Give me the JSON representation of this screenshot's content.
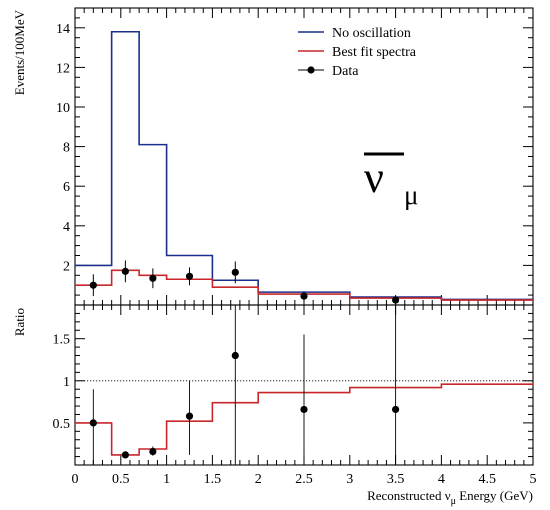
{
  "chart_data": [
    {
      "type": "line",
      "panel": "top",
      "ylabel": "Events/100MeV",
      "xlim": [
        0,
        5
      ],
      "ylim": [
        0,
        15
      ],
      "yticks": [
        2,
        4,
        6,
        8,
        10,
        12,
        14
      ],
      "legend": {
        "placement": "top-right"
      },
      "series": [
        {
          "name": "No oscillation",
          "color": "#1c2f8a",
          "style": "step",
          "bins": [
            {
              "x0": 0.0,
              "x1": 0.4,
              "y": 2.0
            },
            {
              "x0": 0.4,
              "x1": 0.7,
              "y": 13.8
            },
            {
              "x0": 0.7,
              "x1": 1.0,
              "y": 8.1
            },
            {
              "x0": 1.0,
              "x1": 1.5,
              "y": 2.5
            },
            {
              "x0": 1.5,
              "x1": 2.0,
              "y": 1.25
            },
            {
              "x0": 2.0,
              "x1": 3.0,
              "y": 0.65
            },
            {
              "x0": 3.0,
              "x1": 4.0,
              "y": 0.4
            },
            {
              "x0": 4.0,
              "x1": 5.0,
              "y": 0.28
            }
          ]
        },
        {
          "name": "Best fit spectra",
          "color": "#c8262a",
          "style": "step",
          "bins": [
            {
              "x0": 0.0,
              "x1": 0.4,
              "y": 1.0
            },
            {
              "x0": 0.4,
              "x1": 0.7,
              "y": 1.75
            },
            {
              "x0": 0.7,
              "x1": 1.0,
              "y": 1.5
            },
            {
              "x0": 1.0,
              "x1": 1.5,
              "y": 1.3
            },
            {
              "x0": 1.5,
              "x1": 2.0,
              "y": 0.9
            },
            {
              "x0": 2.0,
              "x1": 3.0,
              "y": 0.55
            },
            {
              "x0": 3.0,
              "x1": 4.0,
              "y": 0.35
            },
            {
              "x0": 4.0,
              "x1": 5.0,
              "y": 0.25
            }
          ]
        },
        {
          "name": "Data",
          "color": "#000000",
          "style": "points",
          "points": [
            {
              "x": 0.2,
              "y": 1.0,
              "err": 0.55
            },
            {
              "x": 0.55,
              "y": 1.7,
              "err": 0.55
            },
            {
              "x": 0.85,
              "y": 1.35,
              "err": 0.5
            },
            {
              "x": 1.25,
              "y": 1.45,
              "err": 0.45
            },
            {
              "x": 1.75,
              "y": 1.65,
              "err": 0.55
            },
            {
              "x": 2.5,
              "y": 0.45,
              "err": 0.2
            },
            {
              "x": 3.5,
              "y": 0.25,
              "err": 0.2
            }
          ]
        }
      ]
    },
    {
      "type": "line",
      "panel": "bottom",
      "ylabel": "Ratio",
      "xlabel": "Reconstructed ν_μ Energy (GeV)",
      "xlim": [
        0,
        5
      ],
      "ylim": [
        0,
        1.9
      ],
      "xticks": [
        "0",
        "0.5",
        "1",
        "1.5",
        "2",
        "2.5",
        "3",
        "3.5",
        "4",
        "4.5",
        "5"
      ],
      "yticks": [
        "0.5",
        "1",
        "1.5"
      ],
      "reference_line": 1.0,
      "series": [
        {
          "name": "Best fit spectra",
          "color": "#c8262a",
          "style": "step",
          "bins": [
            {
              "x0": 0.0,
              "x1": 0.4,
              "y": 0.5
            },
            {
              "x0": 0.4,
              "x1": 0.7,
              "y": 0.12
            },
            {
              "x0": 0.7,
              "x1": 1.0,
              "y": 0.19
            },
            {
              "x0": 1.0,
              "x1": 1.5,
              "y": 0.52
            },
            {
              "x0": 1.5,
              "x1": 2.0,
              "y": 0.74
            },
            {
              "x0": 2.0,
              "x1": 3.0,
              "y": 0.86
            },
            {
              "x0": 3.0,
              "x1": 4.0,
              "y": 0.92
            },
            {
              "x0": 4.0,
              "x1": 5.0,
              "y": 0.96
            }
          ]
        },
        {
          "name": "Data",
          "color": "#000000",
          "style": "points",
          "points": [
            {
              "x": 0.2,
              "y": 0.5,
              "lo": 0.0,
              "hi": 0.9
            },
            {
              "x": 0.55,
              "y": 0.12,
              "lo": 0.08,
              "hi": 0.16
            },
            {
              "x": 0.85,
              "y": 0.16,
              "lo": 0.11,
              "hi": 0.22
            },
            {
              "x": 1.25,
              "y": 0.58,
              "lo": 0.12,
              "hi": 1.0
            },
            {
              "x": 1.75,
              "y": 1.3,
              "lo": 0.0,
              "hi": 1.9
            },
            {
              "x": 2.5,
              "y": 0.66,
              "lo": 0.0,
              "hi": 1.55
            },
            {
              "x": 3.5,
              "y": 0.66,
              "lo": 0.0,
              "hi": 1.9
            }
          ]
        }
      ]
    }
  ],
  "annotation": {
    "symbol": "ν",
    "subscript": "μ",
    "overbar": true
  },
  "xlabel_parts": {
    "prefix": "Reconstructed ",
    "nu": "ν",
    "sub": "μ",
    "suffix": " Energy (GeV)"
  }
}
